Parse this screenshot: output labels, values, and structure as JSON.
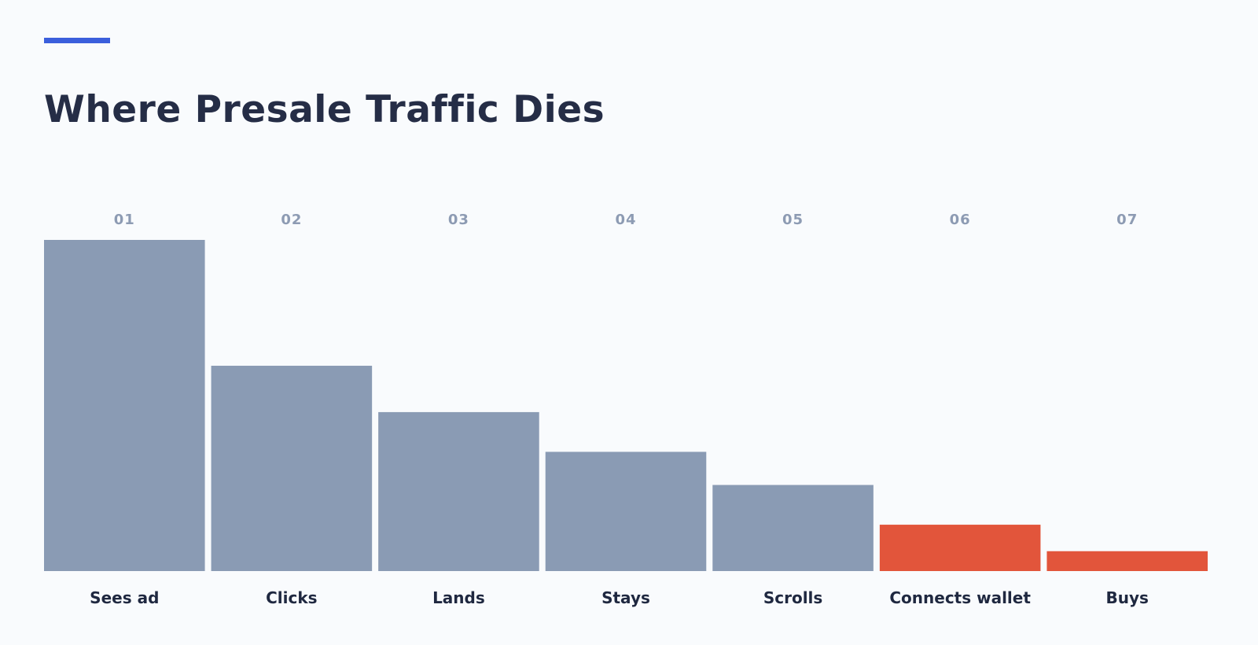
{
  "header": {
    "title": "Where Presale Traffic Dies"
  },
  "colors": {
    "accent": "#3b5fdc",
    "bar_default": "#8a9bb4",
    "bar_highlight": "#e2553b"
  },
  "chart_data": {
    "type": "bar",
    "title": "Where Presale Traffic Dies",
    "steps": [
      "01",
      "02",
      "03",
      "04",
      "05",
      "06",
      "07"
    ],
    "categories": [
      "Sees ad",
      "Clicks",
      "Lands",
      "Stays",
      "Scrolls",
      "Connects wallet",
      "Buys"
    ],
    "values": [
      100,
      62,
      48,
      36,
      26,
      14,
      6
    ],
    "highlighted": [
      false,
      false,
      false,
      false,
      false,
      true,
      true
    ],
    "ylim": [
      0,
      100
    ],
    "grid": false,
    "xlabel": "",
    "ylabel": ""
  }
}
